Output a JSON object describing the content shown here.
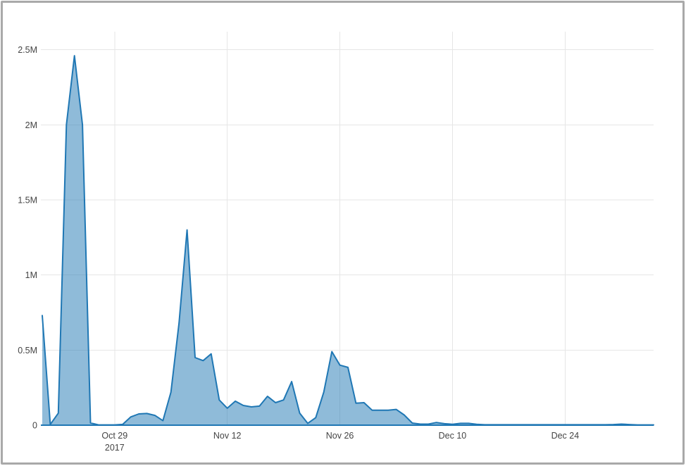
{
  "frame": {
    "border_color": "#a9a9a9",
    "background_color": "#ffffff"
  },
  "chart_data": {
    "type": "area",
    "title": "",
    "xlabel": "",
    "ylabel": "",
    "legend_position": "none",
    "grid": true,
    "line_color": "#1f77b4",
    "fill_color": "rgba(31,119,180,0.5)",
    "grid_color": "#e6e6e6",
    "tick_label_color": "#444444",
    "ylim": [
      0,
      2620000
    ],
    "yticks": [
      {
        "value": 0,
        "label": "0"
      },
      {
        "value": 500000,
        "label": "0.5M"
      },
      {
        "value": 1000000,
        "label": "1M"
      },
      {
        "value": 1500000,
        "label": "1.5M"
      },
      {
        "value": 2000000,
        "label": "2M"
      },
      {
        "value": 2500000,
        "label": "2.5M"
      }
    ],
    "xticks": [
      {
        "date": "2017-10-29",
        "label": "Oct 29",
        "sublabel": "2017"
      },
      {
        "date": "2017-11-12",
        "label": "Nov 12",
        "sublabel": ""
      },
      {
        "date": "2017-11-26",
        "label": "Nov 26",
        "sublabel": ""
      },
      {
        "date": "2017-12-10",
        "label": "Dec 10",
        "sublabel": ""
      },
      {
        "date": "2017-12-24",
        "label": "Dec 24",
        "sublabel": ""
      }
    ],
    "x": [
      "2017-10-20",
      "2017-10-21",
      "2017-10-22",
      "2017-10-23",
      "2017-10-24",
      "2017-10-25",
      "2017-10-26",
      "2017-10-27",
      "2017-10-28",
      "2017-10-29",
      "2017-10-30",
      "2017-10-31",
      "2017-11-01",
      "2017-11-02",
      "2017-11-03",
      "2017-11-04",
      "2017-11-05",
      "2017-11-06",
      "2017-11-07",
      "2017-11-08",
      "2017-11-09",
      "2017-11-10",
      "2017-11-11",
      "2017-11-12",
      "2017-11-13",
      "2017-11-14",
      "2017-11-15",
      "2017-11-16",
      "2017-11-17",
      "2017-11-18",
      "2017-11-19",
      "2017-11-20",
      "2017-11-21",
      "2017-11-22",
      "2017-11-23",
      "2017-11-24",
      "2017-11-25",
      "2017-11-26",
      "2017-11-27",
      "2017-11-28",
      "2017-11-29",
      "2017-11-30",
      "2017-12-01",
      "2017-12-02",
      "2017-12-03",
      "2017-12-04",
      "2017-12-05",
      "2017-12-06",
      "2017-12-07",
      "2017-12-08",
      "2017-12-09",
      "2017-12-10",
      "2017-12-11",
      "2017-12-12",
      "2017-12-13",
      "2017-12-14",
      "2017-12-15",
      "2017-12-16",
      "2017-12-17",
      "2017-12-18",
      "2017-12-19",
      "2017-12-20",
      "2017-12-21",
      "2017-12-22",
      "2017-12-23",
      "2017-12-24",
      "2017-12-25",
      "2017-12-26",
      "2017-12-27",
      "2017-12-28",
      "2017-12-29",
      "2017-12-30",
      "2017-12-31",
      "2018-01-01",
      "2018-01-02",
      "2018-01-03",
      "2018-01-04"
    ],
    "values": [
      730000,
      5000,
      80000,
      2000000,
      2460000,
      2000000,
      15000,
      2000,
      2000,
      2000,
      5000,
      55000,
      75000,
      78000,
      65000,
      30000,
      220000,
      680000,
      1300000,
      450000,
      430000,
      475000,
      168000,
      113000,
      160000,
      131000,
      122000,
      127000,
      192000,
      150000,
      168000,
      290000,
      80000,
      12000,
      50000,
      220000,
      490000,
      400000,
      385000,
      146000,
      150000,
      100000,
      100000,
      100000,
      105000,
      68000,
      14000,
      7000,
      7000,
      18000,
      10000,
      6000,
      12000,
      12000,
      6000,
      3000,
      3000,
      3000,
      3000,
      3000,
      3000,
      3000,
      3000,
      3000,
      3000,
      3000,
      3000,
      3000,
      3000,
      3000,
      3000,
      4000,
      7000,
      4000,
      2000,
      2000,
      2000
    ]
  }
}
